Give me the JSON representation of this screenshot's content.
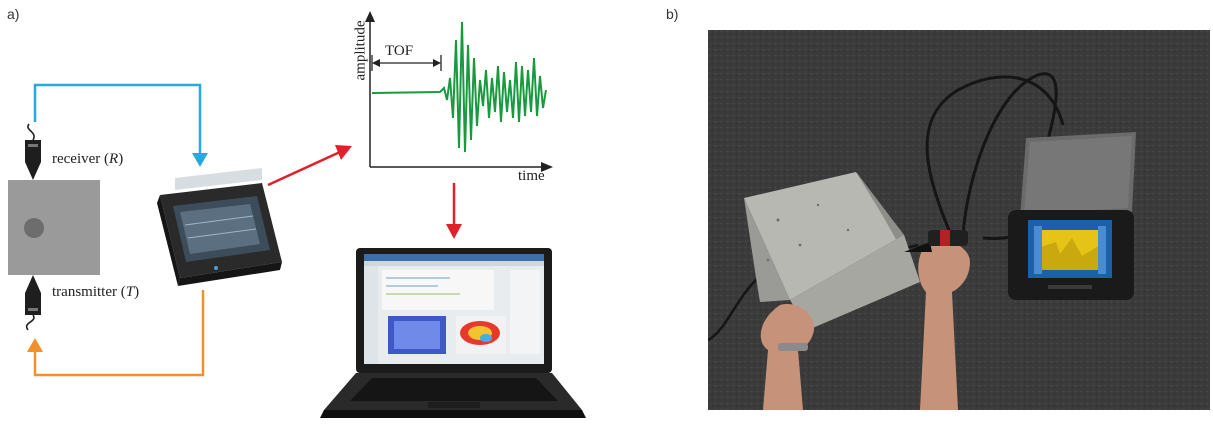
{
  "panel_a": {
    "label": "a)",
    "receiver": {
      "text": "receiver (",
      "var": "R",
      "close": ")"
    },
    "transmitter": {
      "text": "transmitter (",
      "var": "T",
      "close": ")"
    },
    "waveform": {
      "ylabel": "amplitude",
      "xlabel": "time",
      "tof": "TOF"
    },
    "colors": {
      "blue_path": "#29a8e0",
      "orange_path": "#f0912b",
      "red_arrow": "#e0202a",
      "signal": "#1a9a3e",
      "specimen": "#9a9a9a"
    }
  },
  "panel_b": {
    "label": "b)",
    "background": "#3b3b3b"
  }
}
